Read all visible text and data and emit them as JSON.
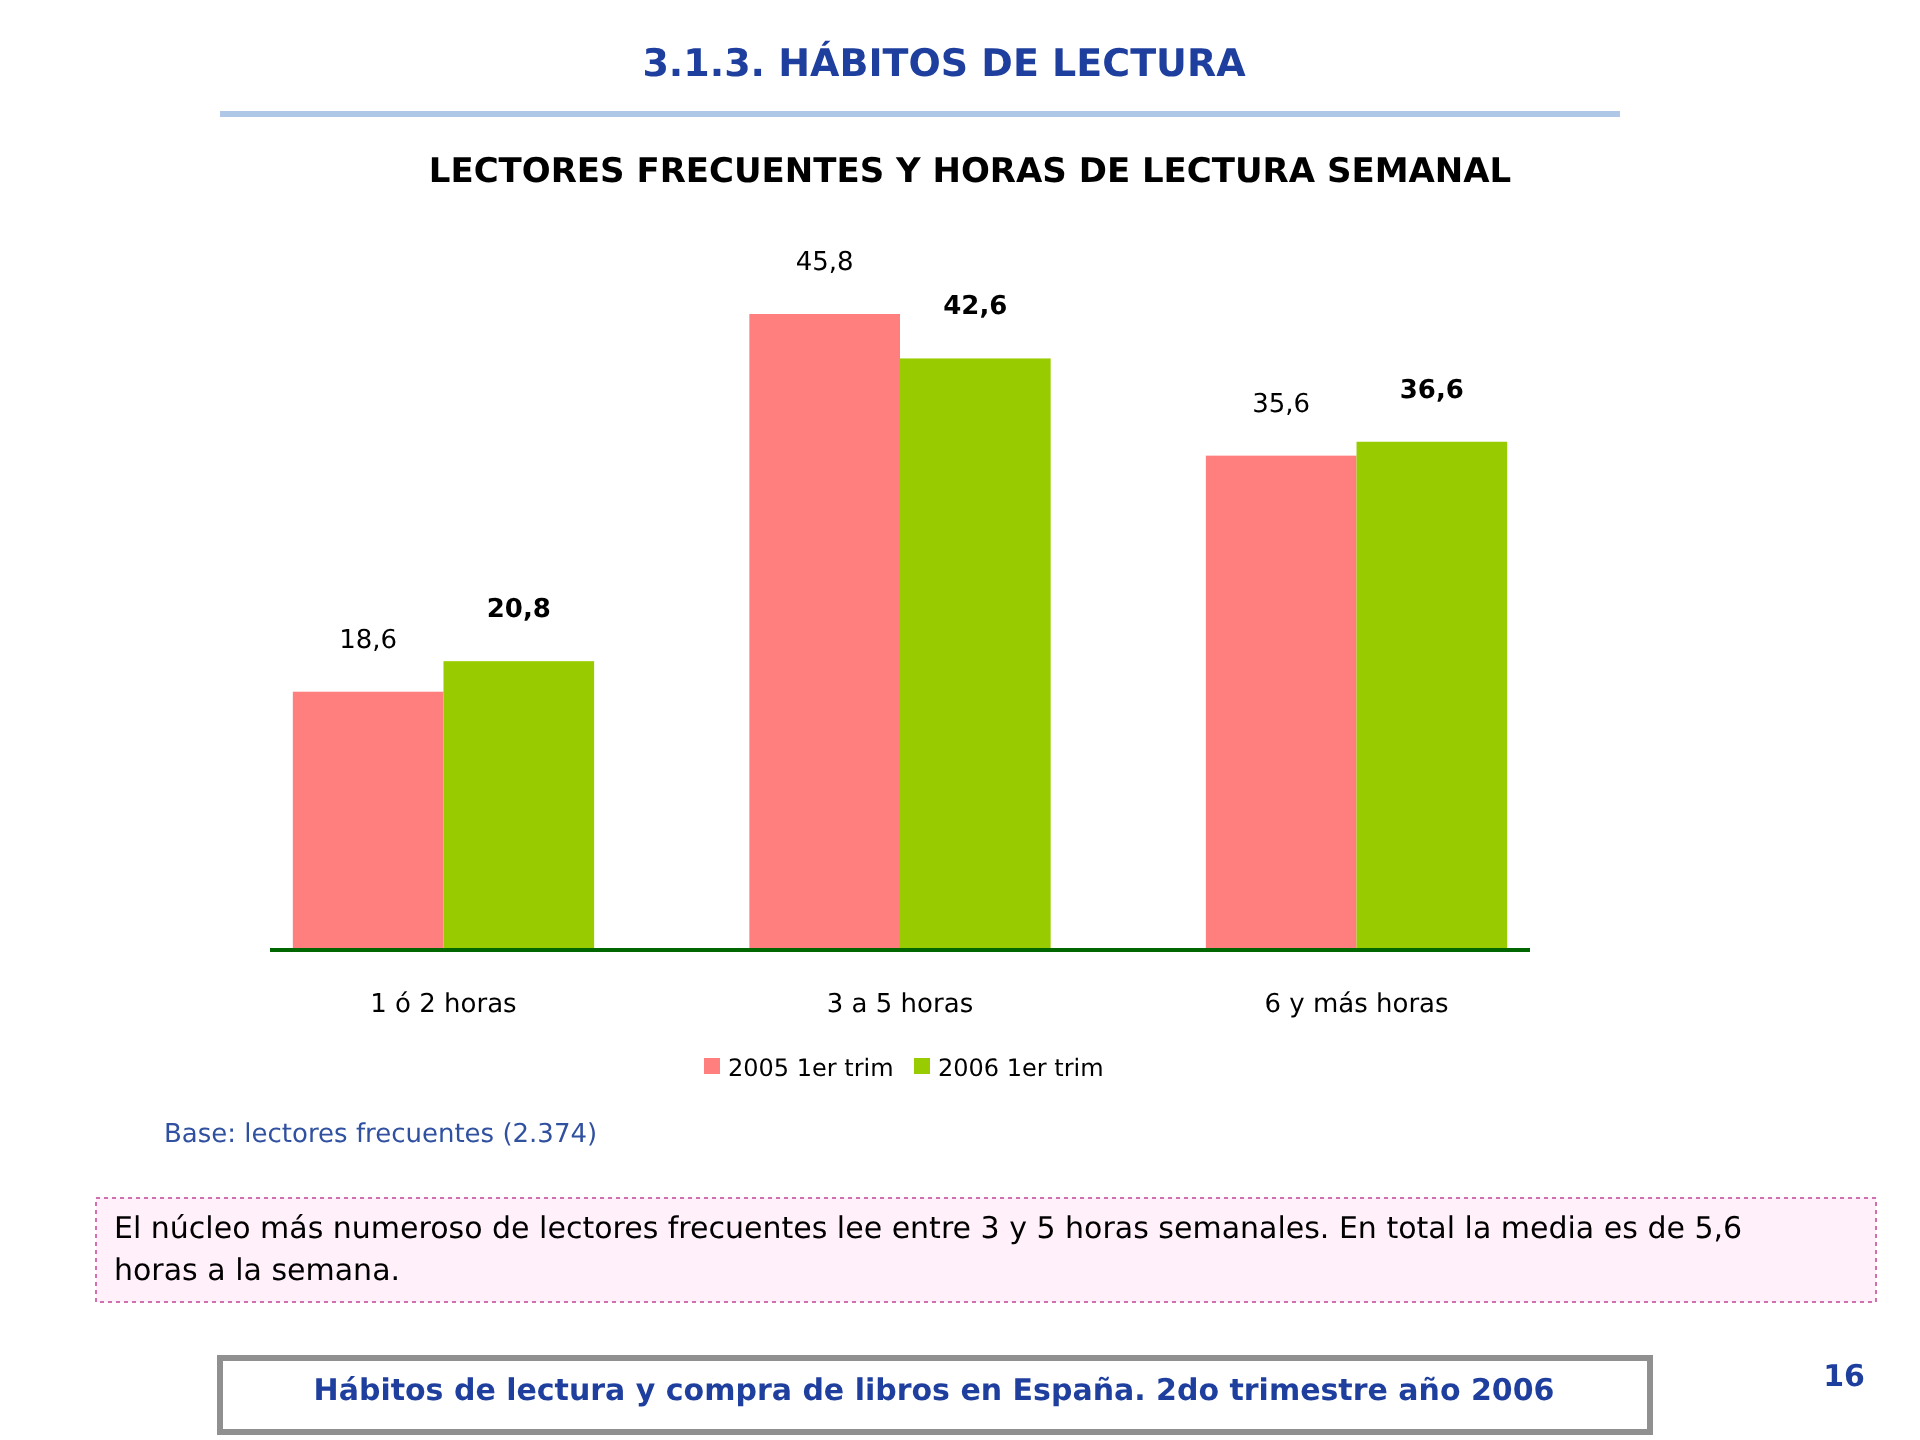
{
  "chart_data": {
    "type": "bar",
    "title": "3.1.3.  HÁBITOS DE LECTURA",
    "subtitle": "LECTORES FRECUENTES Y HORAS DE LECTURA SEMANAL",
    "categories": [
      "1 ó 2 horas",
      "3 a 5 horas",
      "6 y más horas"
    ],
    "series": [
      {
        "name": "2005 1er trim",
        "color": "#ff7f7f",
        "values": [
          18.6,
          45.8,
          35.6
        ],
        "value_labels": [
          "18,6",
          "45,8",
          "35,6"
        ]
      },
      {
        "name": "2006 1er trim",
        "color": "#99cc00",
        "values": [
          20.8,
          42.6,
          36.6
        ],
        "value_labels": [
          "20,8",
          "42,6",
          "36,6"
        ]
      }
    ],
    "legend": "bottom",
    "annotations": [
      "Base: lectores  frecuentes (2.374)",
      "El núcleo más numeroso de lectores frecuentes lee entre 3 y 5 horas semanales. En total la media es de 5,6 horas a la semana.",
      "Hábitos de lectura y compra de libros en España. 2do trimestre año 2006",
      "16"
    ]
  }
}
